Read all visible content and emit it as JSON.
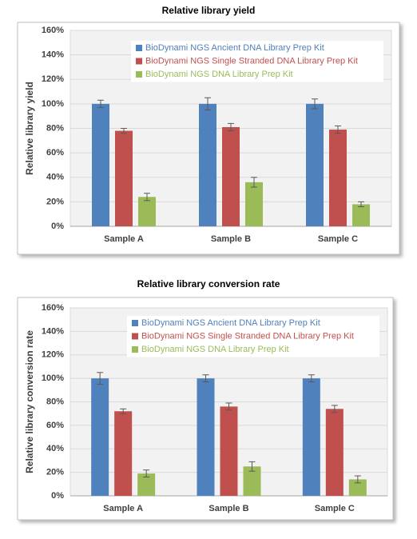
{
  "chart_data": [
    {
      "type": "bar",
      "title": "Relative library yield",
      "ylabel": "Relative library yield",
      "categories": [
        "Sample A",
        "Sample B",
        "Sample C"
      ],
      "series": [
        {
          "name": "BioDynami NGS Ancient DNA Library Prep Kit",
          "color": "#4f81bd",
          "values": [
            100,
            100,
            100
          ],
          "errors": [
            3,
            5,
            4
          ]
        },
        {
          "name": "BioDynami NGS Single Stranded DNA Library Prep Kit",
          "color": "#c0504d",
          "values": [
            78,
            81,
            79
          ],
          "errors": [
            2,
            3,
            3
          ]
        },
        {
          "name": "BioDynami NGS DNA Library Prep Kit",
          "color": "#9bbb59",
          "values": [
            24,
            36,
            18
          ],
          "errors": [
            3,
            4,
            2
          ]
        }
      ],
      "ylim": [
        0,
        160
      ],
      "yticks": [
        {
          "value": 0,
          "label": "0%"
        },
        {
          "value": 20,
          "label": "20%"
        },
        {
          "value": 40,
          "label": "40%"
        },
        {
          "value": 60,
          "label": "60%"
        },
        {
          "value": 80,
          "label": "80%"
        },
        {
          "value": 100,
          "label": "100%"
        },
        {
          "value": 120,
          "label": "120%"
        },
        {
          "value": 140,
          "label": "140%"
        },
        {
          "value": 160,
          "label": "160%"
        }
      ],
      "grid": true
    },
    {
      "type": "bar",
      "title": "Relative library conversion rate",
      "ylabel": "Relative library conversion rate",
      "categories": [
        "Sample A",
        "Sample B",
        "Sample C"
      ],
      "series": [
        {
          "name": "BioDynami NGS Ancient DNA Library Prep Kit",
          "color": "#4f81bd",
          "values": [
            100,
            100,
            100
          ],
          "errors": [
            5,
            3,
            3
          ]
        },
        {
          "name": "BioDynami NGS Single Stranded DNA Library Prep Kit",
          "color": "#c0504d",
          "values": [
            72,
            76,
            74
          ],
          "errors": [
            2,
            3,
            3
          ]
        },
        {
          "name": "BioDynami NGS DNA Library Prep Kit",
          "color": "#9bbb59",
          "values": [
            19,
            25,
            14
          ],
          "errors": [
            3,
            4,
            3
          ]
        }
      ],
      "ylim": [
        0,
        160
      ],
      "yticks": [
        {
          "value": 0,
          "label": "0%"
        },
        {
          "value": 20,
          "label": "20%"
        },
        {
          "value": 40,
          "label": "40%"
        },
        {
          "value": 60,
          "label": "60%"
        },
        {
          "value": 80,
          "label": "80%"
        },
        {
          "value": 100,
          "label": "100%"
        },
        {
          "value": 120,
          "label": "120%"
        },
        {
          "value": 140,
          "label": "140%"
        },
        {
          "value": 160,
          "label": "160%"
        }
      ],
      "grid": true
    }
  ]
}
